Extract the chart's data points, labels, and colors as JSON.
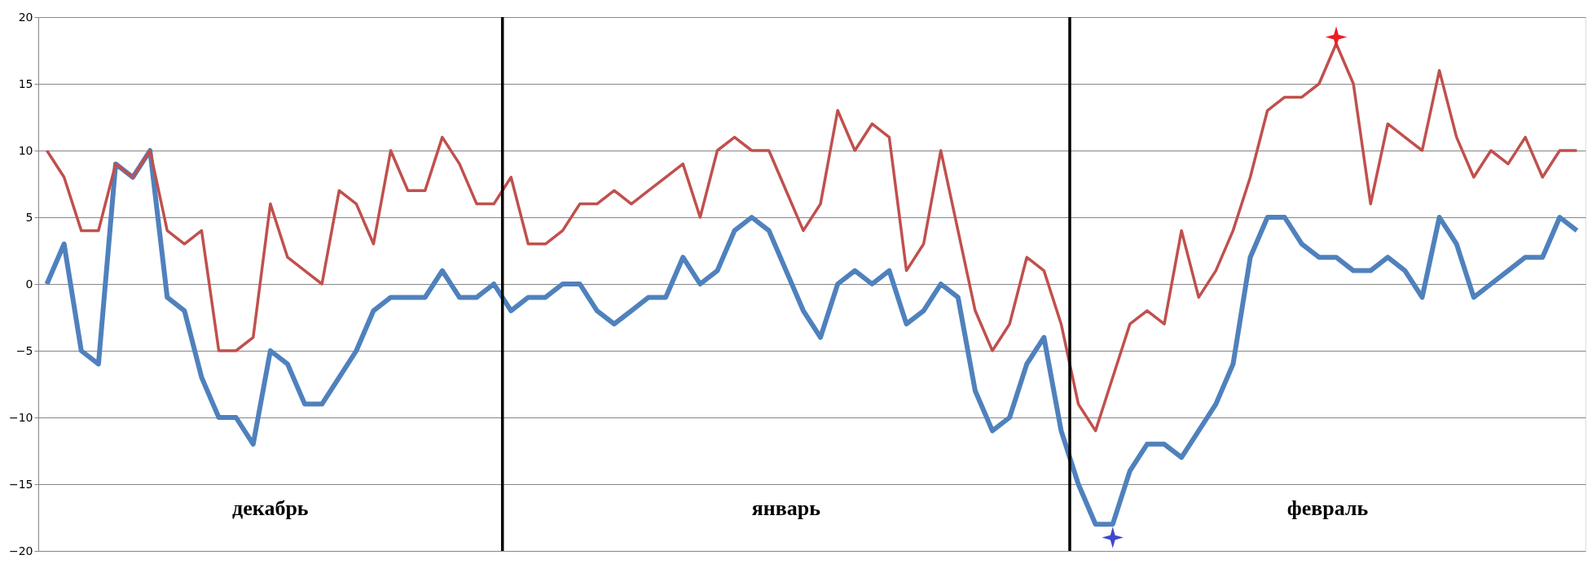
{
  "chart_data": {
    "type": "line",
    "categories": [
      null,
      null,
      null,
      null,
      null,
      null,
      null,
      null,
      null,
      null,
      null,
      null,
      null,
      null,
      null,
      null,
      null,
      null,
      null,
      null,
      null,
      null,
      null,
      null,
      null,
      null,
      null,
      null,
      null,
      null,
      null,
      null,
      null,
      null,
      null,
      null,
      null,
      null,
      null,
      null,
      null,
      null,
      null,
      null,
      null,
      null,
      null,
      null,
      null,
      null,
      null,
      null,
      null,
      null,
      null,
      null,
      null,
      null,
      null,
      null,
      null,
      null,
      null,
      null,
      null,
      null,
      null,
      null,
      null,
      null,
      null,
      null,
      null,
      null,
      null,
      null,
      null,
      null,
      null,
      null,
      null,
      null,
      null,
      null,
      null,
      null,
      null,
      null,
      null,
      null
    ],
    "series": [
      {
        "color": "#c0504d",
        "values": [
          10,
          8,
          4,
          4,
          9,
          8,
          10,
          4,
          3,
          4,
          -5,
          -5,
          -4,
          6,
          2,
          1,
          0,
          7,
          6,
          3,
          10,
          7,
          7,
          11,
          9,
          6,
          6,
          8,
          3,
          3,
          4,
          6,
          6,
          7,
          6,
          7,
          8,
          9,
          5,
          10,
          11,
          10,
          10,
          7,
          4,
          6,
          13,
          10,
          12,
          11,
          1,
          3,
          10,
          4,
          -2,
          -5,
          -3,
          2,
          1,
          -3,
          -9,
          -11,
          -7,
          -3,
          -2,
          -3,
          4,
          -1,
          1,
          4,
          8,
          13,
          14,
          14,
          15,
          18,
          15,
          6,
          12,
          11,
          10,
          16,
          11,
          8,
          10,
          9,
          11,
          8,
          10,
          10
        ]
      },
      {
        "color": "#4f81bd",
        "values": [
          0,
          3,
          -5,
          -6,
          9,
          8,
          10,
          -1,
          -2,
          -7,
          -10,
          -10,
          -12,
          -5,
          -6,
          -9,
          -9,
          -7,
          -5,
          -2,
          -1,
          -1,
          -1,
          1,
          -1,
          -1,
          0,
          -2,
          -1,
          -1,
          0,
          0,
          -2,
          -3,
          -2,
          -1,
          -1,
          2,
          0,
          1,
          4,
          5,
          4,
          1,
          -2,
          -4,
          0,
          1,
          0,
          1,
          -3,
          -2,
          0,
          -1,
          -8,
          -11,
          -10,
          -6,
          -4,
          -11,
          -15,
          -18,
          -18,
          -14,
          -12,
          -12,
          -13,
          -11,
          -9,
          -6,
          2,
          5,
          5,
          3,
          2,
          2,
          1,
          1,
          2,
          1,
          -1,
          5,
          3,
          -1,
          0,
          1,
          2,
          2,
          5,
          4
        ]
      },
      {
        "type": "scatter",
        "marker": "star",
        "color": "#ee1c24",
        "values": [
          null,
          null,
          null,
          null,
          null,
          null,
          null,
          null,
          null,
          null,
          null,
          null,
          null,
          null,
          null,
          null,
          null,
          null,
          null,
          null,
          null,
          null,
          null,
          null,
          null,
          null,
          null,
          null,
          null,
          null,
          null,
          null,
          null,
          null,
          null,
          null,
          null,
          null,
          null,
          null,
          null,
          null,
          null,
          null,
          null,
          null,
          null,
          null,
          null,
          null,
          null,
          null,
          null,
          null,
          null,
          null,
          null,
          null,
          null,
          null,
          null,
          null,
          null,
          null,
          null,
          null,
          null,
          null,
          null,
          null,
          null,
          null,
          null,
          null,
          null,
          18.5,
          null,
          null,
          null,
          null,
          null,
          null,
          null,
          null,
          null,
          null,
          null,
          null,
          null,
          null
        ]
      },
      {
        "type": "scatter",
        "marker": "star",
        "color": "#3f48cc",
        "values": [
          null,
          null,
          null,
          null,
          null,
          null,
          null,
          null,
          null,
          null,
          null,
          null,
          null,
          null,
          null,
          null,
          null,
          null,
          null,
          null,
          null,
          null,
          null,
          null,
          null,
          null,
          null,
          null,
          null,
          null,
          null,
          null,
          null,
          null,
          null,
          null,
          null,
          null,
          null,
          null,
          null,
          null,
          null,
          null,
          null,
          null,
          null,
          null,
          null,
          null,
          null,
          null,
          null,
          null,
          null,
          null,
          null,
          null,
          null,
          null,
          null,
          null,
          -19,
          null,
          null,
          null,
          null,
          null,
          null,
          null,
          null,
          null,
          null,
          null,
          null,
          null,
          null,
          null,
          null,
          null,
          null,
          null,
          null,
          null,
          null,
          null,
          null,
          null,
          null,
          null
        ]
      }
    ],
    "ylim": [
      -20,
      20
    ],
    "yticks": [
      -20,
      -15,
      -10,
      -5,
      0,
      5,
      10,
      15,
      20
    ],
    "grid": "y",
    "tick_labels": "y",
    "marker": "none",
    "line_style": "solid",
    "annotations": [
      "декабрь",
      "январь",
      "февраль"
    ]
  }
}
